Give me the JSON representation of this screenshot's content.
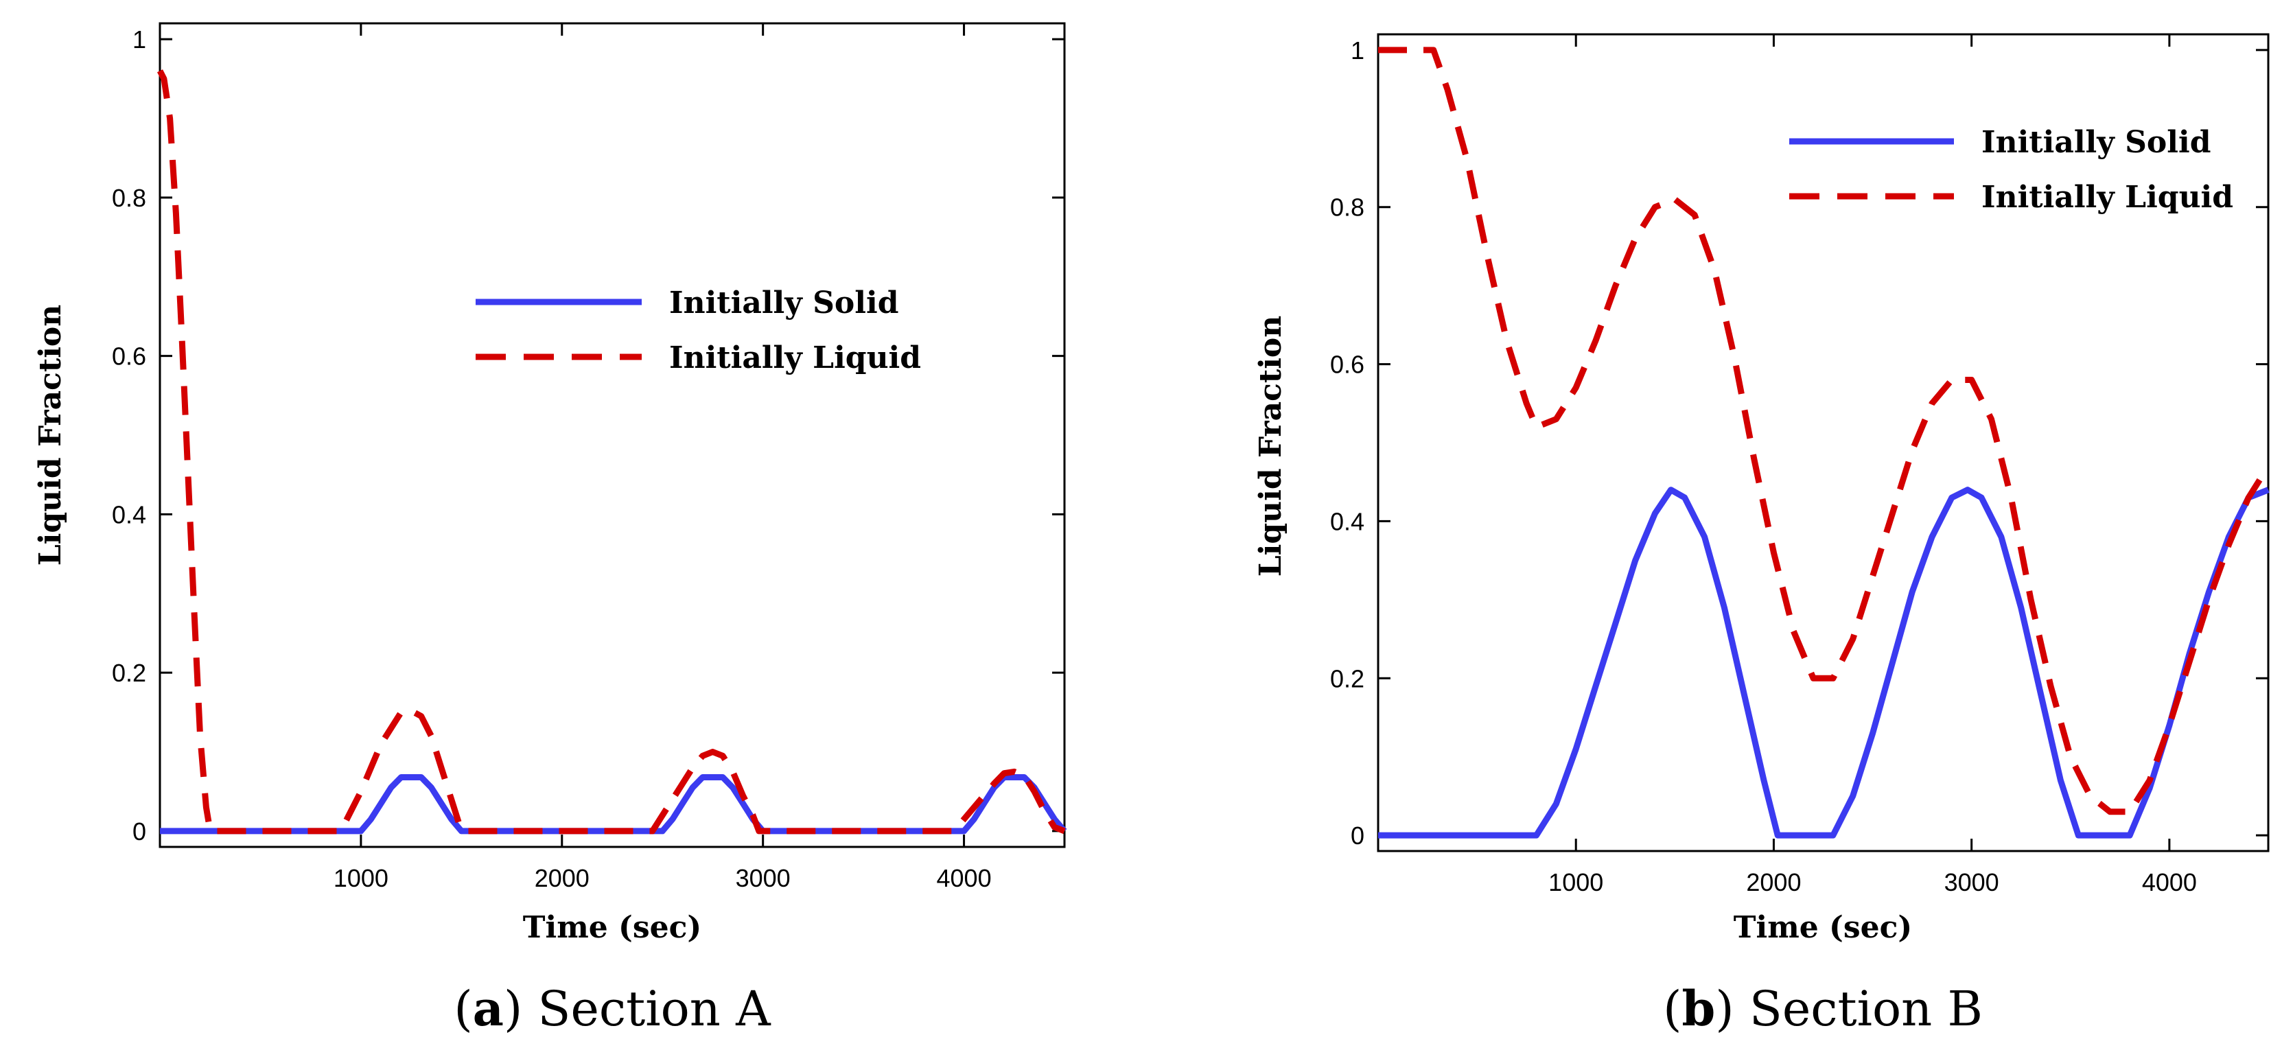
{
  "panels": [
    {
      "caption_letter": "a",
      "caption_prefix": "(",
      "caption_rest": ") Section A",
      "chart_data": {
        "type": "line",
        "title": "",
        "xlabel": "Time (sec)",
        "ylabel": "Liquid Fraction",
        "xlim": [
          0,
          4500
        ],
        "ylim": [
          -0.02,
          1.02
        ],
        "xticks": [
          1000,
          2000,
          3000,
          4000
        ],
        "xtick_labels": [
          "1000",
          "2000",
          "3000",
          "4000"
        ],
        "yticks": [
          0,
          0.2,
          0.4,
          0.6,
          0.8,
          1
        ],
        "ytick_labels": [
          "0",
          "0.2",
          "0.4",
          "0.6",
          "0.8",
          "1"
        ],
        "legend_position": "center-right",
        "series": [
          {
            "name": "Initially Solid",
            "style": "solid",
            "color": "#3b3bf0",
            "x": [
              0,
              1000,
              1050,
              1100,
              1150,
              1200,
              1300,
              1350,
              1400,
              1450,
              1500,
              2500,
              2550,
              2600,
              2650,
              2700,
              2800,
              2850,
              2900,
              2950,
              3000,
              4000,
              4050,
              4100,
              4150,
              4200,
              4300,
              4350,
              4400,
              4450,
              4500
            ],
            "y": [
              0,
              0,
              0.015,
              0.035,
              0.055,
              0.068,
              0.068,
              0.055,
              0.035,
              0.015,
              0,
              0,
              0.015,
              0.035,
              0.055,
              0.068,
              0.068,
              0.055,
              0.035,
              0.015,
              0,
              0,
              0.015,
              0.035,
              0.055,
              0.068,
              0.068,
              0.055,
              0.035,
              0.015,
              0
            ]
          },
          {
            "name": "Initially Liquid",
            "style": "dashed",
            "color": "#d40000",
            "x": [
              0,
              20,
              50,
              80,
              110,
              140,
              170,
              200,
              230,
              250,
              900,
              1000,
              1100,
              1200,
              1250,
              1300,
              1350,
              1400,
              1450,
              1500,
              2450,
              2550,
              2650,
              2700,
              2750,
              2800,
              2850,
              2900,
              2950,
              2980,
              3950,
              4050,
              4150,
              4200,
              4250,
              4300,
              4350,
              4400,
              4450,
              4500
            ],
            "y": [
              0.96,
              0.95,
              0.9,
              0.78,
              0.62,
              0.45,
              0.28,
              0.12,
              0.03,
              0,
              0,
              0.05,
              0.11,
              0.15,
              0.152,
              0.145,
              0.12,
              0.08,
              0.04,
              0,
              0,
              0.04,
              0.08,
              0.095,
              0.1,
              0.095,
              0.075,
              0.045,
              0.02,
              0,
              0,
              0.03,
              0.06,
              0.073,
              0.075,
              0.07,
              0.05,
              0.025,
              0.005,
              0
            ]
          }
        ]
      }
    },
    {
      "caption_letter": "b",
      "caption_prefix": "(",
      "caption_rest": ") Section B",
      "chart_data": {
        "type": "line",
        "title": "",
        "xlabel": "Time (sec)",
        "ylabel": "Liquid Fraction",
        "xlim": [
          0,
          4500
        ],
        "ylim": [
          -0.02,
          1.02
        ],
        "xticks": [
          1000,
          2000,
          3000,
          4000
        ],
        "xtick_labels": [
          "1000",
          "2000",
          "3000",
          "4000"
        ],
        "yticks": [
          0,
          0.2,
          0.4,
          0.6,
          0.8,
          1
        ],
        "ytick_labels": [
          "0",
          "0.2",
          "0.4",
          "0.6",
          "0.8",
          "1"
        ],
        "legend_position": "top-right",
        "series": [
          {
            "name": "Initially Solid",
            "style": "solid",
            "color": "#3b3bf0",
            "x": [
              0,
              800,
              900,
              1000,
              1100,
              1200,
              1300,
              1400,
              1480,
              1550,
              1650,
              1750,
              1850,
              1950,
              2020,
              2300,
              2400,
              2500,
              2600,
              2700,
              2800,
              2900,
              2980,
              3050,
              3150,
              3250,
              3350,
              3450,
              3540,
              3800,
              3900,
              4000,
              4100,
              4200,
              4300,
              4400,
              4500
            ],
            "y": [
              0,
              0,
              0.04,
              0.11,
              0.19,
              0.27,
              0.35,
              0.41,
              0.44,
              0.43,
              0.38,
              0.29,
              0.18,
              0.07,
              0,
              0,
              0.05,
              0.13,
              0.22,
              0.31,
              0.38,
              0.43,
              0.44,
              0.43,
              0.38,
              0.29,
              0.18,
              0.07,
              0,
              0,
              0.06,
              0.14,
              0.23,
              0.31,
              0.38,
              0.43,
              0.44
            ]
          },
          {
            "name": "Initially Liquid",
            "style": "dashed",
            "color": "#d40000",
            "x": [
              0,
              280,
              350,
              450,
              550,
              650,
              750,
              800,
              900,
              1000,
              1100,
              1200,
              1300,
              1400,
              1500,
              1600,
              1700,
              1800,
              1900,
              2000,
              2100,
              2200,
              2300,
              2400,
              2500,
              2600,
              2700,
              2800,
              2900,
              3000,
              3100,
              3200,
              3300,
              3400,
              3500,
              3600,
              3700,
              3800,
              3900,
              4000,
              4100,
              4200,
              4300,
              4400,
              4500
            ],
            "y": [
              1.0,
              1.0,
              0.95,
              0.86,
              0.74,
              0.63,
              0.55,
              0.52,
              0.53,
              0.57,
              0.63,
              0.7,
              0.76,
              0.8,
              0.81,
              0.79,
              0.72,
              0.61,
              0.48,
              0.36,
              0.26,
              0.2,
              0.2,
              0.25,
              0.33,
              0.41,
              0.49,
              0.55,
              0.58,
              0.58,
              0.53,
              0.43,
              0.3,
              0.19,
              0.1,
              0.05,
              0.03,
              0.03,
              0.07,
              0.14,
              0.22,
              0.3,
              0.37,
              0.43,
              0.47
            ]
          }
        ]
      }
    }
  ]
}
